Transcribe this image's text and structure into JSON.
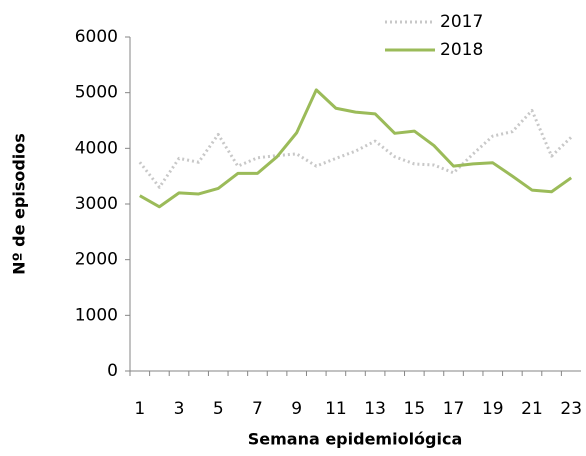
{
  "chart_data": {
    "type": "line",
    "y_label": "Nº de episodios",
    "x_label": "Semana epidemiológica",
    "categories": [
      1,
      null,
      3,
      null,
      5,
      null,
      7,
      null,
      9,
      null,
      11,
      null,
      13,
      null,
      15,
      null,
      17,
      null,
      19,
      null,
      21,
      null,
      23
    ],
    "series": [
      {
        "name": "2017",
        "color": "#c8c8c8",
        "dash": true,
        "values": [
          3750,
          3300,
          3820,
          3750,
          4250,
          3680,
          3830,
          3870,
          3900,
          3680,
          3820,
          3950,
          4130,
          3850,
          3720,
          3700,
          3560,
          3900,
          4220,
          4300,
          4680,
          3860,
          4200
        ]
      },
      {
        "name": "2018",
        "color": "#9bbb59",
        "dash": false,
        "values": [
          3150,
          2950,
          3200,
          3180,
          3280,
          3550,
          3550,
          3850,
          4280,
          5050,
          4720,
          4650,
          4620,
          4270,
          4310,
          4050,
          3680,
          3720,
          3740,
          3500,
          3250,
          3220,
          3470
        ]
      }
    ],
    "ylim": [
      0,
      6000
    ],
    "yticks": [
      0,
      1000,
      2000,
      3000,
      4000,
      5000,
      6000
    ],
    "legend": "top-right"
  }
}
